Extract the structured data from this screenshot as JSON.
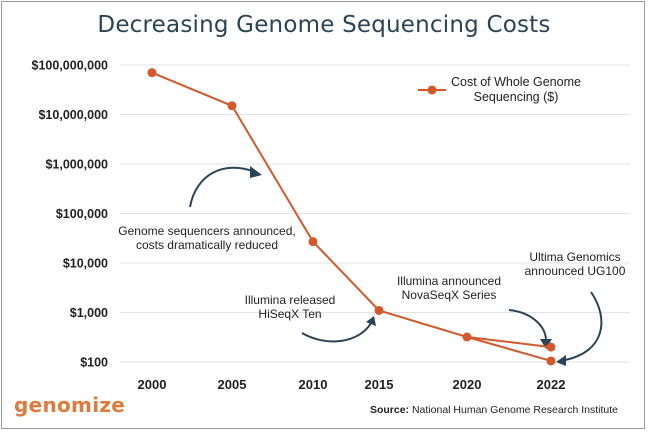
{
  "chart_data": {
    "type": "line",
    "title": "Decreasing Genome Sequencing Costs",
    "yscale": "log",
    "ylim": [
      100,
      100000000
    ],
    "y_ticks": [
      {
        "value": 100000000,
        "label": "$100,000,000"
      },
      {
        "value": 10000000,
        "label": "$10,000,000"
      },
      {
        "value": 1000000,
        "label": "$1,000,000"
      },
      {
        "value": 100000,
        "label": "$100,000"
      },
      {
        "value": 10000,
        "label": "$10,000"
      },
      {
        "value": 1000,
        "label": "$1,000"
      },
      {
        "value": 100,
        "label": "$100"
      }
    ],
    "x_ticks": [
      "2000",
      "2005",
      "2010",
      "2015",
      "2020",
      "2022"
    ],
    "grid": true,
    "legend": {
      "placement": "top-right",
      "label_lines": [
        "Cost of Whole Genome",
        "Sequencing ($)"
      ]
    },
    "series": [
      {
        "name": "Cost of Whole Genome Sequencing ($)",
        "color": "#d2592b",
        "points": [
          {
            "x": 0,
            "y": 70000000
          },
          {
            "x": 1,
            "y": 15000000
          },
          {
            "x": 2,
            "y": 27000
          },
          {
            "x": 3,
            "y": 1100
          },
          {
            "x": 4,
            "y": 320
          },
          {
            "x": 5,
            "y": 200
          },
          {
            "x": 5,
            "y": 105
          }
        ]
      }
    ],
    "annotations": [
      {
        "lines": [
          "Genome sequencers announced,",
          "costs dramatically reduced"
        ]
      },
      {
        "lines": [
          "Illumina released",
          "HiSeqX Ten"
        ]
      },
      {
        "lines": [
          "Illumina announced",
          "NovaSeqX Series"
        ]
      },
      {
        "lines": [
          "Ultima Genomics",
          "announced UG100"
        ]
      }
    ]
  },
  "logo_text": "genomize",
  "source": {
    "label": "Source:",
    "text": "National Human Genome Research Institute"
  }
}
